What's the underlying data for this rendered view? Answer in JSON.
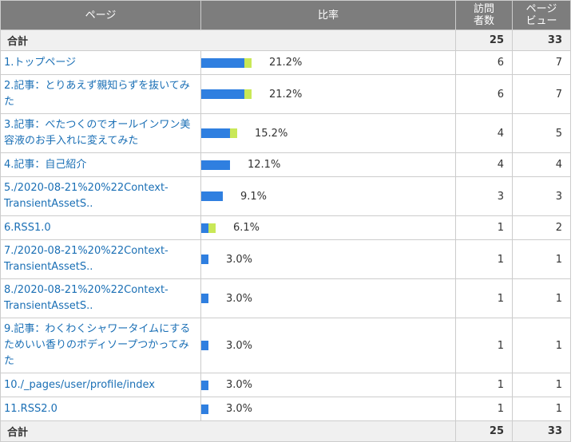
{
  "header": {
    "page": "ページ",
    "ratio": "比率",
    "visits_line1": "訪問",
    "visits_line2": "者数",
    "views_line1": "ページ",
    "views_line2": "ビュー"
  },
  "total": {
    "label": "合計",
    "visits": "25",
    "views": "33"
  },
  "rows": [
    {
      "name": "1.トップページ",
      "pct": "21.2%",
      "visits": "6",
      "views": "7",
      "bar_blue": 0.85,
      "bar_green": 0.15
    },
    {
      "name": "2.記事：とりあえず親知らずを抜いてみた",
      "pct": "21.2%",
      "visits": "6",
      "views": "7",
      "bar_blue": 0.85,
      "bar_green": 0.15
    },
    {
      "name": "3.記事：べたつくのでオールインワン美容液のお手入れに変えてみた",
      "pct": "15.2%",
      "visits": "4",
      "views": "5",
      "bar_blue": 0.8,
      "bar_green": 0.2
    },
    {
      "name": "4.記事：自己紹介",
      "pct": "12.1%",
      "visits": "4",
      "views": "4",
      "bar_blue": 1.0,
      "bar_green": 0.0
    },
    {
      "name": "5./2020-08-21%20%22Context-TransientAssetS..",
      "pct": "9.1%",
      "visits": "3",
      "views": "3",
      "bar_blue": 1.0,
      "bar_green": 0.0
    },
    {
      "name": "6.RSS1.0",
      "pct": "6.1%",
      "visits": "1",
      "views": "2",
      "bar_blue": 0.5,
      "bar_green": 0.5
    },
    {
      "name": "7./2020-08-21%20%22Context-TransientAssetS..",
      "pct": "3.0%",
      "visits": "1",
      "views": "1",
      "bar_blue": 1.0,
      "bar_green": 0.0
    },
    {
      "name": "8./2020-08-21%20%22Context-TransientAssetS..",
      "pct": "3.0%",
      "visits": "1",
      "views": "1",
      "bar_blue": 1.0,
      "bar_green": 0.0
    },
    {
      "name": "9.記事：わくわくシャワータイムにするためいい香りのボディソープつかってみた",
      "pct": "3.0%",
      "visits": "1",
      "views": "1",
      "bar_blue": 1.0,
      "bar_green": 0.0
    },
    {
      "name": "10./_pages/user/profile/index",
      "pct": "3.0%",
      "visits": "1",
      "views": "1",
      "bar_blue": 1.0,
      "bar_green": 0.0
    },
    {
      "name": "11.RSS2.0",
      "pct": "3.0%",
      "visits": "1",
      "views": "1",
      "bar_blue": 1.0,
      "bar_green": 0.0
    }
  ],
  "colors": {
    "header_bg": "#7d7d7d",
    "bar_blue": "#2f7fe0",
    "bar_green": "#c9e857",
    "link": "#1a6fb5"
  }
}
